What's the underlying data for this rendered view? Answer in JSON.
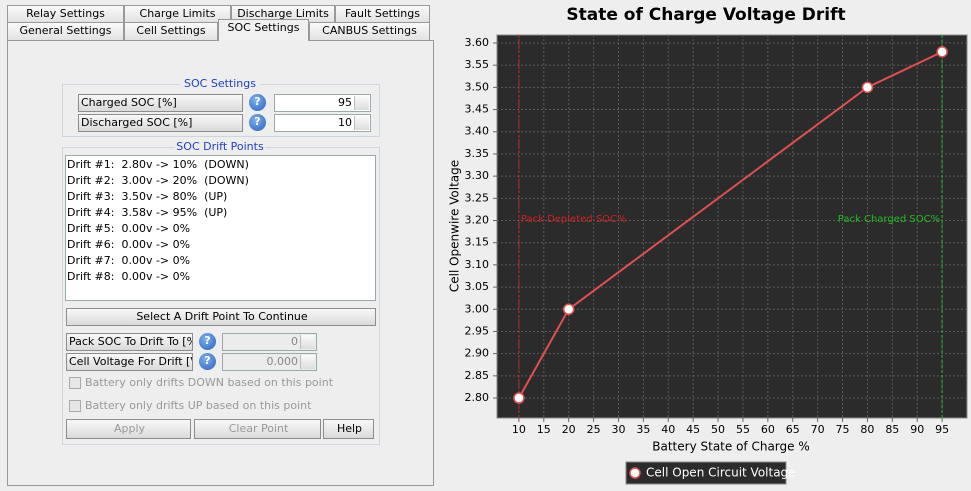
{
  "tabs": {
    "row1": [
      "Relay Settings",
      "Charge Limits",
      "Discharge Limits",
      "Fault Settings"
    ],
    "row2": [
      "General Settings",
      "Cell Settings",
      "SOC Settings",
      "CANBUS Settings"
    ]
  },
  "soc_settings": {
    "title": "SOC Settings",
    "charged_label": "Charged SOC [%]",
    "charged_value": 95,
    "discharged_label": "Discharged SOC [%]",
    "discharged_value": 10
  },
  "drift": {
    "title": "SOC Drift Points",
    "items": [
      "Drift #1:  2.80v -> 10%  (DOWN)",
      "Drift #2:  3.00v -> 20%  (DOWN)",
      "Drift #3:  3.50v -> 80%  (UP)",
      "Drift #4:  3.58v -> 95%  (UP)",
      "Drift #5:  0.00v -> 0%",
      "Drift #6:  0.00v -> 0%",
      "Drift #7:  0.00v -> 0%",
      "Drift #8:  0.00v -> 0%"
    ],
    "prompt": "Select A Drift Point To Continue",
    "pack_soc_label": "Pack SOC To Drift To [%]",
    "pack_soc_value": 0,
    "cell_voltage_label": "Cell Voltage For Drift [V]",
    "cell_voltage_value": "0.000",
    "check_down": "Battery only drifts DOWN based on this point",
    "check_up": "Battery only drifts UP based on this point",
    "buttons": [
      "Apply",
      "Clear Point",
      "Help"
    ]
  },
  "chart_data": {
    "type": "line",
    "title": "State of Charge Voltage Drift",
    "x_label": "Battery State of Charge %",
    "y_label": "Cell Openwire Voltage",
    "x": [
      10,
      20,
      80,
      95
    ],
    "series": [
      {
        "name": "Cell Open Circuit Voltage",
        "color": "#e05050",
        "values": [
          2.8,
          3.0,
          3.5,
          3.58
        ]
      }
    ],
    "xlim": [
      5.6,
      100
    ],
    "ylim": [
      2.755,
      3.618
    ],
    "xticks": [
      10,
      15,
      20,
      25,
      30,
      35,
      40,
      45,
      50,
      55,
      60,
      65,
      70,
      75,
      80,
      85,
      90,
      95
    ],
    "yticks": [
      {
        "value": 2.8,
        "label": "2.80"
      },
      2.85,
      {
        "value": 2.9,
        "label": "2.90"
      },
      2.95,
      {
        "value": 3.0,
        "label": "3.00"
      },
      3.05,
      {
        "value": 3.1,
        "label": "3.10"
      },
      3.15,
      {
        "value": 3.2,
        "label": "3.20"
      },
      3.25,
      {
        "value": 3.3,
        "label": "3.30"
      },
      3.35,
      {
        "value": 3.4,
        "label": "3.40"
      },
      3.45,
      {
        "value": 3.5,
        "label": "3.50"
      },
      3.55,
      {
        "value": 3.6,
        "label": "3.60"
      }
    ],
    "grid": true,
    "markers": [
      {
        "x": 10,
        "label": "Pack Depleted SOC%",
        "color": "#cc2222"
      },
      {
        "x": 95,
        "label": "Pack Charged SOC%",
        "color": "#22bb22"
      }
    ]
  }
}
